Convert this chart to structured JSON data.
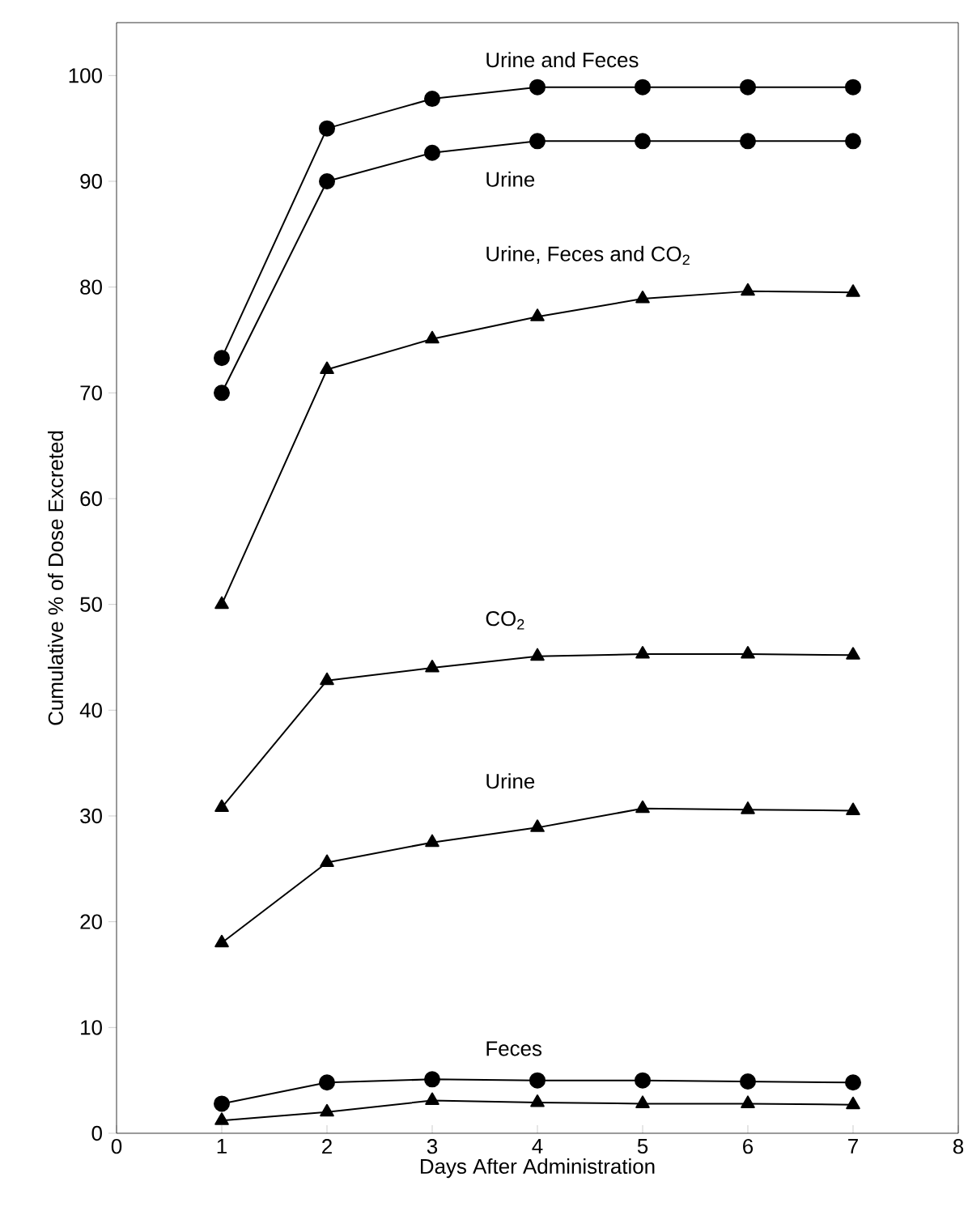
{
  "chart_data": {
    "type": "line",
    "xlabel": "Days After Administration",
    "ylabel": "Cumulative % of Dose Excreted",
    "x": [
      1,
      2,
      3,
      4,
      5,
      6,
      7
    ],
    "xlim": [
      0,
      8
    ],
    "xticks": [
      0,
      1,
      2,
      3,
      4,
      5,
      6,
      7,
      8
    ],
    "ylim": [
      0,
      105
    ],
    "yticks": [
      0,
      10,
      20,
      30,
      40,
      50,
      60,
      70,
      80,
      90,
      100
    ],
    "grid": false,
    "legend": false,
    "line_style": "solid",
    "series": [
      {
        "name": "Urine and Feces",
        "color": "#000000",
        "marker": "circle",
        "values": [
          73.3,
          95,
          97.8,
          98.9,
          98.9,
          98.9,
          98.9
        ]
      },
      {
        "name": "Urine",
        "color": "#000000",
        "marker": "circle",
        "values": [
          70,
          90,
          92.7,
          93.8,
          93.8,
          93.8,
          93.8
        ]
      },
      {
        "name": "Urine, Feces and CO$_{2}$",
        "color": "#000000",
        "marker": "triangle",
        "values": [
          50,
          72.2,
          75.1,
          77.2,
          78.9,
          79.6,
          79.5
        ]
      },
      {
        "name": "CO$_{2}$",
        "color": "#000000",
        "marker": "triangle",
        "values": [
          30.8,
          42.8,
          44,
          45.1,
          45.3,
          45.3,
          45.2
        ]
      },
      {
        "name": "Urine",
        "color": "#000000",
        "marker": "triangle",
        "values": [
          18,
          25.6,
          27.5,
          28.9,
          30.7,
          30.6,
          30.5
        ]
      },
      {
        "name": "Feces",
        "color": "#000000",
        "marker": "circle",
        "values": [
          2.8,
          4.8,
          5.1,
          5,
          5,
          4.9,
          4.8
        ]
      },
      {
        "color": "#000000",
        "marker": "triangle",
        "values": [
          1.2,
          2,
          3.1,
          2.9,
          2.8,
          2.8,
          2.7
        ]
      }
    ]
  }
}
